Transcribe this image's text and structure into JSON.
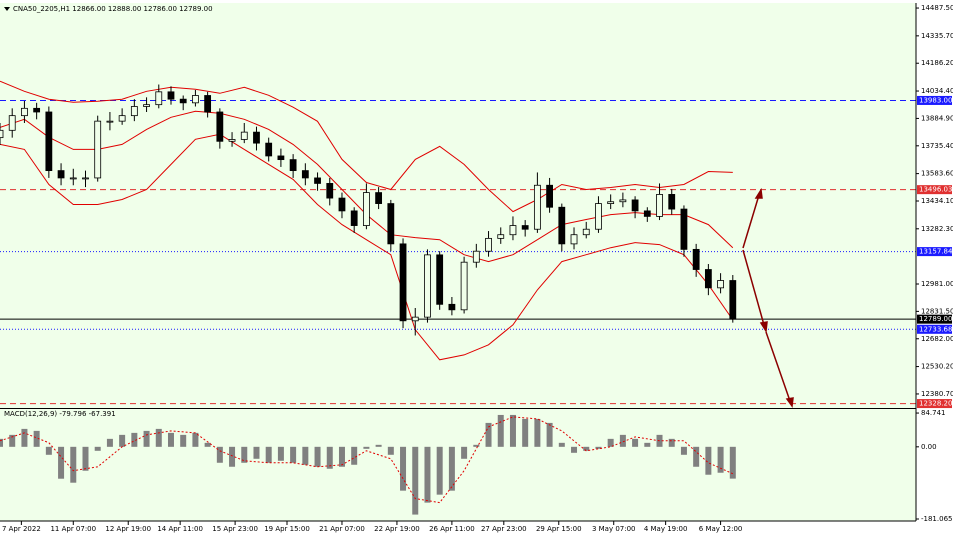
{
  "chart_data": [
    {
      "type": "candlestick",
      "title": "CNA50_2205,H1  12866.00 12888.00 12786.00 12789.00",
      "background": "#f0ffea",
      "candle_color": "#000000",
      "x": [
        0,
        4,
        8,
        12,
        16,
        20,
        24,
        28,
        32,
        36,
        40,
        44,
        48,
        52,
        56,
        60,
        64,
        68,
        72,
        76,
        80,
        84,
        88,
        92,
        96,
        100,
        104,
        108,
        112,
        116,
        120,
        124,
        128,
        132,
        136,
        140,
        144,
        148,
        152,
        156,
        160,
        164,
        168,
        172,
        176,
        180,
        184,
        188,
        192,
        196,
        200,
        204,
        208,
        212,
        216,
        220,
        224,
        228,
        232,
        236,
        240
      ],
      "open": [
        13780,
        13820,
        13900,
        13940,
        13920,
        13600,
        13560,
        13560,
        13560,
        13870,
        13870,
        13900,
        13950,
        13960,
        14030,
        13990,
        13970,
        14010,
        13920,
        13760,
        13770,
        13810,
        13750,
        13680,
        13660,
        13600,
        13560,
        13530,
        13450,
        13380,
        13300,
        13480,
        13420,
        13200,
        12780,
        12800,
        13140,
        12870,
        12840,
        13100,
        13160,
        13230,
        13250,
        13300,
        13280,
        13520,
        13400,
        13200,
        13250,
        13280,
        13420,
        13430,
        13440,
        13380,
        13350,
        13470,
        13390,
        13170,
        13060,
        12960,
        13000
      ],
      "high": [
        13860,
        13940,
        13980,
        13970,
        13950,
        13640,
        13610,
        13600,
        13900,
        13920,
        13940,
        13990,
        14000,
        14070,
        14060,
        14010,
        14040,
        14030,
        13940,
        13810,
        13860,
        13840,
        13780,
        13720,
        13690,
        13640,
        13590,
        13560,
        13480,
        13400,
        13530,
        13510,
        13440,
        13230,
        12850,
        13170,
        13160,
        12910,
        13130,
        13200,
        13270,
        13290,
        13350,
        13330,
        13590,
        13560,
        13420,
        13290,
        13320,
        13460,
        13470,
        13480,
        13460,
        13400,
        13530,
        13500,
        13410,
        13200,
        13090,
        13040,
        13030
      ],
      "low": [
        13740,
        13780,
        13860,
        13880,
        13560,
        13520,
        13520,
        13510,
        13540,
        13820,
        13850,
        13870,
        13920,
        13940,
        13960,
        13930,
        13950,
        13890,
        13720,
        13730,
        13750,
        13710,
        13650,
        13620,
        13560,
        13520,
        13490,
        13410,
        13340,
        13260,
        13280,
        13390,
        13160,
        12740,
        12700,
        12770,
        12840,
        12810,
        12820,
        13070,
        13130,
        13200,
        13220,
        13240,
        13260,
        13370,
        13160,
        13170,
        13230,
        13260,
        13390,
        13400,
        13340,
        13320,
        13330,
        13360,
        13130,
        13020,
        12920,
        12930,
        12770
      ],
      "close": [
        13820,
        13900,
        13940,
        13920,
        13600,
        13560,
        13560,
        13560,
        13870,
        13870,
        13900,
        13950,
        13960,
        14030,
        13990,
        13970,
        14010,
        13920,
        13760,
        13770,
        13810,
        13750,
        13680,
        13660,
        13600,
        13560,
        13530,
        13450,
        13380,
        13300,
        13480,
        13420,
        13200,
        12780,
        12800,
        13140,
        12870,
        12840,
        13100,
        13160,
        13230,
        13250,
        13300,
        13280,
        13520,
        13400,
        13200,
        13250,
        13280,
        13420,
        13430,
        13440,
        13380,
        13350,
        13470,
        13390,
        13170,
        13060,
        12960,
        13000,
        12789
      ],
      "series": [
        {
          "color": "#e00000",
          "x": [
            0,
            8,
            16,
            24,
            32,
            40,
            48,
            56,
            64,
            72,
            80,
            88,
            96,
            104,
            112,
            120,
            128,
            136,
            144,
            152,
            160,
            168,
            176,
            184,
            192,
            200,
            208,
            216,
            224,
            232,
            240
          ],
          "values": [
            14088,
            14033,
            13990,
            13973,
            13979,
            13990,
            14033,
            14055,
            14044,
            14022,
            14055,
            14011,
            13946,
            13869,
            13661,
            13535,
            13497,
            13661,
            13732,
            13634,
            13497,
            13376,
            13442,
            13524,
            13497,
            13508,
            13524,
            13508,
            13524,
            13595,
            13590
          ]
        },
        {
          "color": "#e00000",
          "x": [
            0,
            8,
            16,
            24,
            32,
            40,
            48,
            56,
            64,
            72,
            80,
            88,
            96,
            104,
            112,
            120,
            128,
            136,
            144,
            152,
            160,
            168,
            176,
            184,
            192,
            200,
            208,
            216,
            224,
            232,
            240
          ],
          "values": [
            13836,
            13880,
            13782,
            13716,
            13716,
            13743,
            13825,
            13891,
            13924,
            13913,
            13880,
            13825,
            13743,
            13634,
            13497,
            13360,
            13250,
            13234,
            13223,
            13141,
            13103,
            13141,
            13223,
            13305,
            13333,
            13360,
            13371,
            13360,
            13360,
            13305,
            13179
          ]
        },
        {
          "color": "#e00000",
          "x": [
            0,
            8,
            16,
            24,
            32,
            40,
            48,
            56,
            64,
            72,
            80,
            88,
            96,
            104,
            112,
            120,
            128,
            136,
            144,
            152,
            160,
            168,
            176,
            184,
            192,
            200,
            208,
            216,
            224,
            232,
            240
          ],
          "values": [
            13743,
            13716,
            13524,
            13415,
            13415,
            13442,
            13497,
            13634,
            13771,
            13798,
            13716,
            13634,
            13552,
            13415,
            13305,
            13223,
            13141,
            12731,
            12567,
            12594,
            12649,
            12758,
            12949,
            13103,
            13141,
            13179,
            13207,
            13196,
            13141,
            12977,
            12785
          ]
        }
      ],
      "hlines": [
        {
          "value": 13983,
          "label": "13983.00",
          "color": "#1a1aff",
          "dash": "6,4"
        },
        {
          "value": 13496.03,
          "label": "13496.03",
          "color": "#e03030",
          "dash": "6,4"
        },
        {
          "value": 13157.84,
          "label": "13157.84",
          "color": "#1a1aff",
          "dash": "1,2"
        },
        {
          "value": 12789,
          "label": "12789.00",
          "color": "#000000",
          "dash": "none"
        },
        {
          "value": 12733.68,
          "label": "12733.68",
          "color": "#1a1aff",
          "dash": "1,2"
        },
        {
          "value": 12328.2,
          "label": "12328.20",
          "color": "#e03030",
          "dash": "6,4"
        }
      ],
      "xlim": [
        0,
        300
      ],
      "ylim": [
        12304,
        14515
      ],
      "yticks": [
        {
          "value": 14487.5,
          "label": "14487.50"
        },
        {
          "value": 14335.7,
          "label": "14335.70"
        },
        {
          "value": 14186.2,
          "label": "14186.20"
        },
        {
          "value": 14034.4,
          "label": "14034.40"
        },
        {
          "value": 13884.9,
          "label": "13884.90"
        },
        {
          "value": 13735.4,
          "label": "13735.40"
        },
        {
          "value": 13583.6,
          "label": "13583.60"
        },
        {
          "value": 13434.1,
          "label": "13434.10"
        },
        {
          "value": 13282.3,
          "label": "13282.30"
        },
        {
          "value": 12981,
          "label": "12981.00"
        },
        {
          "value": 12831.5,
          "label": "12831.50"
        },
        {
          "value": 12682,
          "label": "12682.00"
        },
        {
          "value": 12530.2,
          "label": "12530.20"
        },
        {
          "value": 12380.7,
          "label": "12380.70"
        }
      ],
      "xticks": [
        {
          "value": 7,
          "label": "7 Apr 2022"
        },
        {
          "value": 24,
          "label": "11 Apr 07:00"
        },
        {
          "value": 42,
          "label": "12 Apr 19:00"
        },
        {
          "value": 59,
          "label": "14 Apr 11:00"
        },
        {
          "value": 77,
          "label": "15 Apr 23:00"
        },
        {
          "value": 94,
          "label": "19 Apr 15:00"
        },
        {
          "value": 112,
          "label": "21 Apr 07:00"
        },
        {
          "value": 130,
          "label": "22 Apr 19:00"
        },
        {
          "value": 148,
          "label": "26 Apr 11:00"
        },
        {
          "value": 165,
          "label": "27 Apr 23:00"
        },
        {
          "value": 183,
          "label": "29 Apr 15:00"
        },
        {
          "value": 201,
          "label": "3 May 07:00"
        },
        {
          "value": 218,
          "label": "4 May 19:00"
        },
        {
          "value": 236,
          "label": "6 May 12:00"
        }
      ]
    },
    {
      "type": "bar",
      "title": "MACD(12,26,9) -79.796 -67.391",
      "color": "#808080",
      "x": [
        0,
        4,
        8,
        12,
        16,
        20,
        24,
        28,
        32,
        36,
        40,
        44,
        48,
        52,
        56,
        60,
        64,
        68,
        72,
        76,
        80,
        84,
        88,
        92,
        96,
        100,
        104,
        108,
        112,
        116,
        120,
        124,
        128,
        132,
        136,
        140,
        144,
        148,
        152,
        156,
        160,
        164,
        168,
        172,
        176,
        180,
        184,
        188,
        192,
        196,
        200,
        204,
        208,
        212,
        216,
        220,
        224,
        228,
        232,
        236,
        240
      ],
      "values": [
        20,
        30,
        45,
        40,
        -20,
        -80,
        -90,
        -60,
        -10,
        20,
        30,
        35,
        40,
        45,
        35,
        30,
        35,
        10,
        -40,
        -50,
        -40,
        -30,
        -40,
        -35,
        -40,
        -45,
        -50,
        -55,
        -50,
        -45,
        -5,
        5,
        -20,
        -110,
        -170,
        -140,
        -120,
        -110,
        -30,
        5,
        60,
        80,
        80,
        70,
        70,
        60,
        10,
        -15,
        -10,
        -5,
        20,
        30,
        20,
        10,
        30,
        20,
        -20,
        -50,
        -70,
        -65,
        -79.796
      ],
      "signal": {
        "color": "#e00000",
        "x": [
          0,
          8,
          16,
          24,
          32,
          40,
          48,
          56,
          64,
          72,
          80,
          88,
          96,
          104,
          112,
          120,
          128,
          136,
          144,
          152,
          160,
          168,
          176,
          184,
          192,
          200,
          208,
          216,
          224,
          232,
          240
        ],
        "values": [
          15,
          35,
          10,
          -60,
          -50,
          0,
          30,
          40,
          35,
          -10,
          -35,
          -40,
          -40,
          -50,
          -45,
          -10,
          -30,
          -130,
          -140,
          -60,
          50,
          75,
          70,
          40,
          -10,
          0,
          25,
          15,
          15,
          -40,
          -67.391
        ]
      },
      "xlim": [
        0,
        300
      ],
      "ylim": [
        -186.1,
        94.9
      ],
      "yticks": [
        {
          "value": 84.741,
          "label": "84.741"
        },
        {
          "value": 0,
          "label": "0.00"
        },
        {
          "value": -181.065,
          "label": "-181.065"
        }
      ]
    }
  ]
}
